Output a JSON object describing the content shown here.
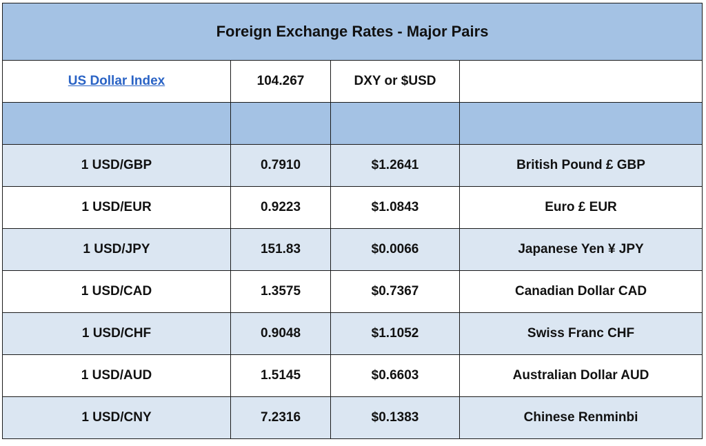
{
  "title": "Foreign Exchange Rates - Major Pairs",
  "index_row": {
    "link_label": "US Dollar Index",
    "value": "104.267",
    "symbol": "DXY or $USD",
    "extra": ""
  },
  "rates": [
    {
      "pair": "1 USD/GBP",
      "rate": "0.7910",
      "usd_value": "$1.2641",
      "currency": "British Pound £ GBP"
    },
    {
      "pair": "1 USD/EUR",
      "rate": "0.9223",
      "usd_value": "$1.0843",
      "currency": "Euro £ EUR"
    },
    {
      "pair": "1 USD/JPY",
      "rate": "151.83",
      "usd_value": "$0.0066",
      "currency": "Japanese Yen ¥ JPY"
    },
    {
      "pair": "1 USD/CAD",
      "rate": "1.3575",
      "usd_value": "$0.7367",
      "currency": "Canadian Dollar CAD"
    },
    {
      "pair": "1 USD/CHF",
      "rate": "0.9048",
      "usd_value": "$1.1052",
      "currency": "Swiss Franc CHF"
    },
    {
      "pair": "1 USD/AUD",
      "rate": "1.5145",
      "usd_value": "$0.6603",
      "currency": "Australian Dollar AUD"
    },
    {
      "pair": "1 USD/CNY",
      "rate": "7.2316",
      "usd_value": "$0.1383",
      "currency": "Chinese Renminbi"
    }
  ],
  "colors": {
    "header_fill": "#a4c2e4",
    "row_shade": "#dbe6f2",
    "link": "#2a63c5"
  }
}
